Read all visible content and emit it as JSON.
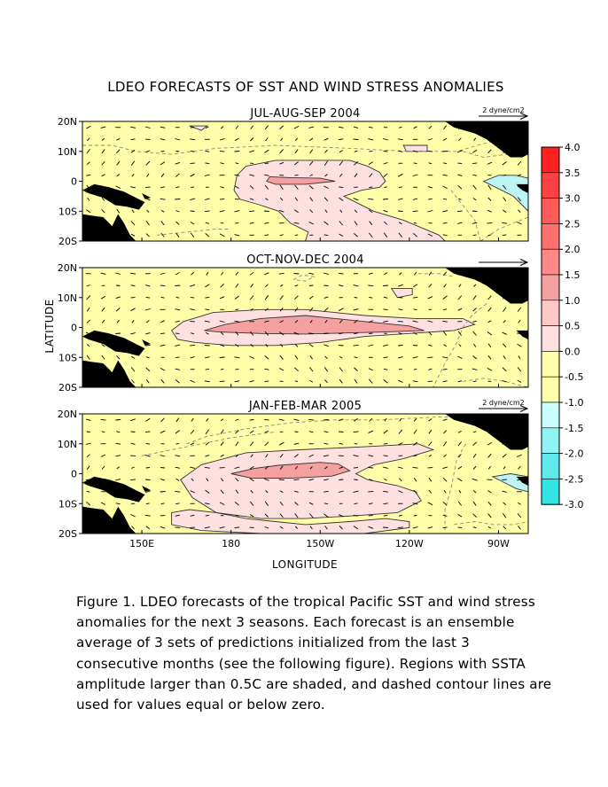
{
  "figure": {
    "title": "LDEO FORECASTS OF SST AND WIND STRESS ANOMALIES",
    "xlabel": "LONGITUDE",
    "ylabel": "LATITUDE",
    "vector_scale_label": "2 dyne/cm2"
  },
  "caption": "Figure 1.  LDEO forecasts of the tropical Pacific SST and wind stress anomalies for the next 3 seasons.  Each forecast is an ensemble average of 3 sets of predictions initialized from the last 3 consecutive months (see the following figure).  Regions with SSTA amplitude larger than 0.5C are shaded, and dashed contour lines are used for values equal or below zero.",
  "colors": {
    "land": "#000000",
    "neutral": "#ffffaa",
    "warm_0_5_1_0": "#ffe0e0",
    "warm_1_0_1_5": "#f4a0a0",
    "cool_below_neg_0_5": "#bff4f4"
  },
  "chart_data": {
    "type": "heatmap",
    "xlim": [
      130,
      280
    ],
    "ylim": [
      -20,
      20
    ],
    "x_ticks": [
      {
        "value": 150,
        "label": "150E"
      },
      {
        "value": 180,
        "label": "180"
      },
      {
        "value": 210,
        "label": "150W"
      },
      {
        "value": 240,
        "label": "120W"
      },
      {
        "value": 270,
        "label": "90W"
      }
    ],
    "y_ticks": [
      {
        "value": 20,
        "label": "20N"
      },
      {
        "value": 10,
        "label": "10N"
      },
      {
        "value": 0,
        "label": "0"
      },
      {
        "value": -10,
        "label": "10S"
      },
      {
        "value": -20,
        "label": "20S"
      }
    ],
    "colorbar": {
      "levels": [
        4.0,
        3.5,
        3.0,
        2.5,
        2.0,
        1.5,
        1.0,
        0.5,
        0.0,
        -0.5,
        -1.0,
        -1.5,
        -2.0,
        -2.5,
        -3.0
      ],
      "labels": [
        "4.0",
        "3.5",
        "3.0",
        "2.5",
        "2.0",
        "1.5",
        "1.0",
        "0.5",
        "0.0",
        "-0.5",
        "-1.0",
        "-1.5",
        "-2.0",
        "-2.5",
        "-3.0"
      ],
      "colors": [
        "#ff2020",
        "#ff4040",
        "#ff5a5a",
        "#ff7070",
        "#ff8888",
        "#f4a0a0",
        "#ffc8c8",
        "#ffe0e0",
        "#ffffaa",
        "#ffffaa",
        "#c8ffff",
        "#8ff4f4",
        "#5eeaea",
        "#33e4e4",
        "#00e0f0"
      ]
    },
    "panels": [
      {
        "title": "JUL-AUG-SEP 2004",
        "anomaly_regions": [
          {
            "level": "0.5",
            "points": [
              [
                185,
                5
              ],
              [
                195,
                7
              ],
              [
                220,
                7
              ],
              [
                226,
                5
              ],
              [
                230,
                3
              ],
              [
                232,
                0
              ],
              [
                230,
                -2
              ],
              [
                224,
                -3
              ],
              [
                218,
                -5
              ],
              [
                228,
                -10
              ],
              [
                238,
                -13
              ],
              [
                250,
                -18
              ],
              [
                252,
                -20
              ],
              [
                205,
                -20
              ],
              [
                206,
                -17
              ],
              [
                200,
                -14
              ],
              [
                196,
                -10
              ],
              [
                190,
                -8
              ],
              [
                183,
                -6
              ],
              [
                181,
                -3
              ],
              [
                182,
                2
              ]
            ]
          },
          {
            "level": "0.5",
            "points": [
              [
                166,
                18.5
              ],
              [
                172,
                18.5
              ],
              [
                170,
                17
              ]
            ]
          },
          {
            "level": "0.5",
            "points": [
              [
                238,
                12
              ],
              [
                246,
                12
              ],
              [
                246,
                10
              ],
              [
                239,
                10
              ]
            ]
          },
          {
            "level": "1.0",
            "points": [
              [
                193,
                1.5
              ],
              [
                200,
                1.2
              ],
              [
                210,
                1
              ],
              [
                215,
                0
              ],
              [
                205,
                -1
              ],
              [
                195,
                -1
              ],
              [
                192,
                0
              ]
            ]
          },
          {
            "level": "-0.5",
            "points": [
              [
                265,
                0
              ],
              [
                270,
                2
              ],
              [
                276,
                2
              ],
              [
                280,
                1
              ],
              [
                280,
                -10
              ],
              [
                275,
                -5
              ]
            ]
          }
        ],
        "zero_contours": [
          [
            [
              130,
              12
            ],
            [
              140,
              12
            ],
            [
              148,
              10
            ],
            [
              160,
              9
            ],
            [
              175,
              11
            ],
            [
              195,
              12
            ],
            [
              220,
              11
            ],
            [
              240,
              10
            ],
            [
              256,
              10
            ],
            [
              263,
              12
            ],
            [
              270,
              14
            ]
          ],
          [
            [
              258,
              10
            ],
            [
              265,
              8
            ],
            [
              273,
              9
            ],
            [
              280,
              11
            ]
          ],
          [
            [
              155,
              -18
            ],
            [
              165,
              -17
            ],
            [
              175,
              -16
            ],
            [
              180,
              -16
            ]
          ],
          [
            [
              254,
              -3
            ],
            [
              258,
              -8
            ],
            [
              262,
              -13
            ],
            [
              264,
              -20
            ]
          ],
          [
            [
              264,
              -20
            ],
            [
              270,
              -16
            ],
            [
              280,
              -12
            ]
          ]
        ],
        "vector_scale": true
      },
      {
        "title": "OCT-NOV-DEC 2004",
        "anomaly_regions": [
          {
            "level": "0.5",
            "points": [
              [
                160,
                -1
              ],
              [
                164,
                2
              ],
              [
                174,
                5
              ],
              [
                190,
                6
              ],
              [
                205,
                6
              ],
              [
                215,
                5
              ],
              [
                225,
                4
              ],
              [
                242,
                3
              ],
              [
                258,
                3
              ],
              [
                262,
                1
              ],
              [
                255,
                -1
              ],
              [
                240,
                -2
              ],
              [
                225,
                -3
              ],
              [
                210,
                -5
              ],
              [
                195,
                -6
              ],
              [
                180,
                -6
              ],
              [
                168,
                -5
              ],
              [
                162,
                -4
              ]
            ]
          },
          {
            "level": "0.5",
            "points": [
              [
                234,
                13
              ],
              [
                241,
                13
              ],
              [
                241,
                11
              ],
              [
                236,
                10
              ]
            ]
          },
          {
            "level": "1.0",
            "points": [
              [
                171,
                -1
              ],
              [
                178,
                1
              ],
              [
                190,
                3
              ],
              [
                205,
                4
              ],
              [
                215,
                3
              ],
              [
                225,
                2
              ],
              [
                240,
                0.5
              ],
              [
                245,
                -1
              ],
              [
                232,
                -1.5
              ],
              [
                220,
                -1.8
              ],
              [
                205,
                -2.2
              ],
              [
                190,
                -2
              ],
              [
                176,
                -1.5
              ]
            ]
          }
        ],
        "zero_contours": [
          [
            [
              201,
              16
            ],
            [
              204,
              17.5
            ],
            [
              208,
              17
            ],
            [
              205,
              15.5
            ],
            [
              201,
              16
            ]
          ],
          [
            [
              243,
              18
            ],
            [
              250,
              18
            ],
            [
              255,
              17
            ]
          ],
          [
            [
              266,
              8
            ],
            [
              261,
              4
            ],
            [
              258,
              0
            ],
            [
              256,
              -5
            ],
            [
              252,
              -12
            ],
            [
              250,
              -16
            ],
            [
              248,
              -20
            ]
          ],
          [
            [
              258,
              -18
            ],
            [
              265,
              -17
            ],
            [
              272,
              -18
            ],
            [
              280,
              -20
            ]
          ]
        ],
        "vector_scale": false
      },
      {
        "title": "JAN-FEB-MAR 2005",
        "anomaly_regions": [
          {
            "level": "0.5",
            "points": [
              [
                163,
                -2
              ],
              [
                170,
                3
              ],
              [
                185,
                7
              ],
              [
                203,
                8
              ],
              [
                225,
                9
              ],
              [
                243,
                10
              ],
              [
                248,
                8
              ],
              [
                238,
                5
              ],
              [
                228,
                3
              ],
              [
                222,
                0
              ],
              [
                226,
                -2
              ],
              [
                236,
                -4
              ],
              [
                242,
                -6
              ],
              [
                244,
                -9
              ],
              [
                236,
                -13
              ],
              [
                222,
                -14
              ],
              [
                205,
                -15
              ],
              [
                190,
                -15
              ],
              [
                175,
                -13
              ],
              [
                167,
                -8
              ]
            ]
          },
          {
            "level": "0.5",
            "points": [
              [
                160,
                -13
              ],
              [
                166,
                -12
              ],
              [
                175,
                -13
              ],
              [
                185,
                -15
              ],
              [
                195,
                -16
              ],
              [
                205,
                -17
              ],
              [
                220,
                -16
              ],
              [
                232,
                -15
              ],
              [
                240,
                -16
              ],
              [
                240,
                -18
              ],
              [
                225,
                -20
              ],
              [
                190,
                -20
              ],
              [
                170,
                -19
              ],
              [
                160,
                -17
              ]
            ]
          },
          {
            "level": "1.0",
            "points": [
              [
                180,
                0
              ],
              [
                188,
                1.8
              ],
              [
                196,
                2.8
              ],
              [
                210,
                3.8
              ],
              [
                216,
                3.3
              ],
              [
                220,
                1
              ],
              [
                214,
                -0.8
              ],
              [
                200,
                -1.5
              ],
              [
                187,
                -1.5
              ]
            ]
          },
          {
            "level": "-0.5",
            "points": [
              [
                268,
                -1
              ],
              [
                274,
                0
              ],
              [
                280,
                -1
              ],
              [
                280,
                -6
              ],
              [
                276,
                -5
              ],
              [
                272,
                -3
              ]
            ]
          }
        ],
        "zero_contours": [
          [
            [
              165,
              10
            ],
            [
              172,
              12.5
            ],
            [
              185,
              15
            ],
            [
              200,
              17
            ],
            [
              215,
              18
            ],
            [
              230,
              18
            ],
            [
              240,
              18.5
            ],
            [
              250,
              19
            ],
            [
              260,
              19
            ]
          ],
          [
            [
              150,
              6
            ],
            [
              160,
              8
            ],
            [
              170,
              10
            ],
            [
              180,
              12
            ],
            [
              195,
              14
            ]
          ],
          [
            [
              259,
              10
            ],
            [
              256,
              5
            ],
            [
              255,
              0
            ],
            [
              254,
              -5
            ],
            [
              252,
              -12
            ],
            [
              252,
              -20
            ]
          ],
          [
            [
              255,
              -17
            ],
            [
              262,
              -16
            ],
            [
              268,
              -17
            ],
            [
              275,
              -17
            ],
            [
              280,
              -16
            ]
          ]
        ],
        "vector_scale": true
      }
    ]
  }
}
